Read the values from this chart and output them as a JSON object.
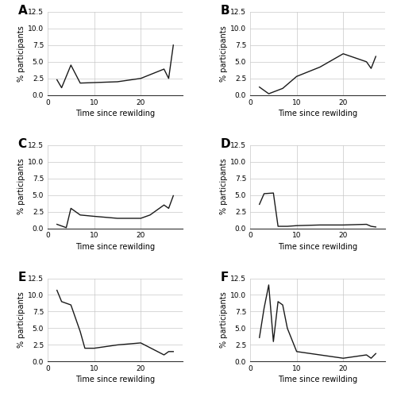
{
  "A_x": [
    2,
    3,
    5,
    7,
    15,
    20,
    25,
    26,
    27
  ],
  "A_y": [
    2.3,
    1.1,
    4.5,
    1.8,
    2.0,
    2.5,
    3.9,
    2.5,
    7.5
  ],
  "B_x": [
    2,
    4,
    7,
    10,
    15,
    20,
    25,
    26,
    27
  ],
  "B_y": [
    1.2,
    0.2,
    1.0,
    2.8,
    4.2,
    6.2,
    5.0,
    4.0,
    5.8
  ],
  "C_x": [
    2,
    4,
    5,
    7,
    10,
    15,
    20,
    22,
    25,
    26,
    27
  ],
  "C_y": [
    0.6,
    0.1,
    3.0,
    2.0,
    1.8,
    1.5,
    1.5,
    2.0,
    3.5,
    3.0,
    4.9
  ],
  "D_x": [
    2,
    3,
    5,
    6,
    8,
    10,
    15,
    20,
    25,
    26,
    27
  ],
  "D_y": [
    3.6,
    5.2,
    5.3,
    0.3,
    0.3,
    0.4,
    0.5,
    0.5,
    0.6,
    0.3,
    0.2
  ],
  "E_x": [
    2,
    3,
    5,
    7,
    8,
    10,
    15,
    20,
    25,
    26,
    27
  ],
  "E_y": [
    10.7,
    9.0,
    8.5,
    4.5,
    2.0,
    2.0,
    2.5,
    2.8,
    1.0,
    1.5,
    1.5
  ],
  "F_x": [
    2,
    3,
    4,
    5,
    6,
    7,
    8,
    10,
    15,
    20,
    25,
    26,
    27
  ],
  "F_y": [
    3.6,
    8.0,
    11.5,
    3.0,
    9.0,
    8.5,
    5.0,
    1.5,
    1.0,
    0.5,
    1.0,
    0.5,
    1.2
  ],
  "ylim": [
    0,
    12.5
  ],
  "yticks": [
    0.0,
    2.5,
    5.0,
    7.5,
    10.0,
    12.5
  ],
  "xticks": [
    0,
    10,
    20
  ],
  "xlim": [
    0,
    29
  ],
  "xlabel": "Time since rewilding",
  "ylabel": "% participants",
  "line_color": "#1a1a1a",
  "grid_color": "#c8c8c8",
  "bg_color": "#ffffff",
  "labels": [
    "A",
    "B",
    "C",
    "D",
    "E",
    "F"
  ]
}
